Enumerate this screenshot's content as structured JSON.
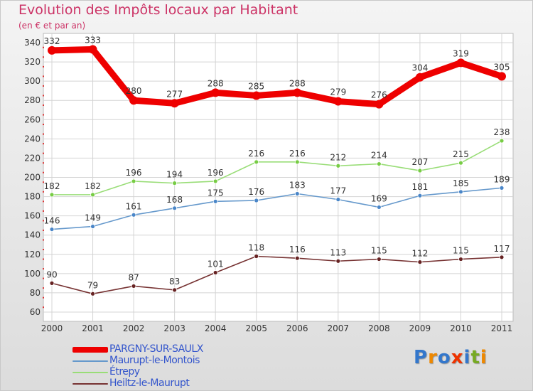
{
  "chart_data": {
    "type": "line",
    "title": "Evolution des Impôts locaux par Habitant",
    "subtitle": "(en € et par an)",
    "x": [
      "2000",
      "2001",
      "2002",
      "2003",
      "2004",
      "2005",
      "2006",
      "2007",
      "2008",
      "2009",
      "2010",
      "2011"
    ],
    "ylim": [
      60,
      340
    ],
    "yticks": [
      60,
      80,
      100,
      120,
      140,
      160,
      180,
      200,
      220,
      240,
      260,
      280,
      300,
      320,
      340
    ],
    "grid": true,
    "legend_position": "bottom-left",
    "series": [
      {
        "name": "PARGNY-SUR-SAULX",
        "color": "#ee0000",
        "marker": "#ee0000",
        "values": [
          332,
          333,
          280,
          277,
          288,
          285,
          288,
          279,
          276,
          304,
          319,
          305
        ]
      },
      {
        "name": "Maurupt-le-Montois",
        "color": "#6699cc",
        "marker": "#4a86c8",
        "values": [
          146,
          149,
          161,
          168,
          175,
          176,
          183,
          177,
          169,
          181,
          185,
          189
        ]
      },
      {
        "name": "Étrepy",
        "color": "#99dd77",
        "marker": "#77cc44",
        "values": [
          182,
          182,
          196,
          194,
          196,
          216,
          216,
          212,
          214,
          207,
          215,
          238
        ]
      },
      {
        "name": "Heiltz-le-Maurupt",
        "color": "#773333",
        "marker": "#662222",
        "values": [
          90,
          79,
          87,
          83,
          101,
          118,
          116,
          113,
          115,
          112,
          115,
          117
        ]
      }
    ]
  },
  "logo": {
    "text": "Proxiti",
    "letters": [
      "P",
      "r",
      "o",
      "x",
      "i",
      "t",
      "i"
    ],
    "colors": [
      "#3377cc",
      "#ee8800",
      "#3377cc",
      "#ee3300",
      "#3377cc",
      "#77aa22",
      "#ee8800"
    ]
  }
}
